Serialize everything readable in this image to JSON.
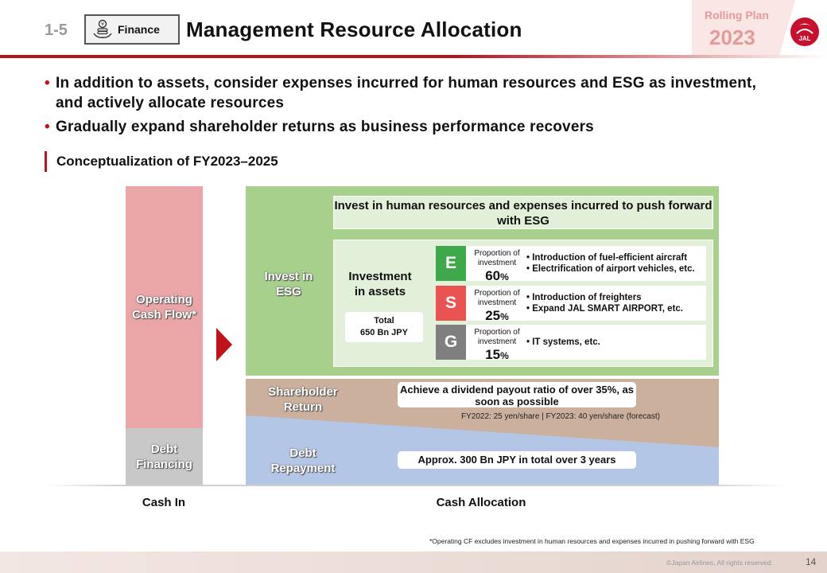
{
  "header": {
    "section_number": "1-5",
    "category_tag": "Finance",
    "title": "Management Resource Allocation",
    "rolling_plan_label": "Rolling Plan",
    "rolling_plan_year": "2023",
    "logo_text": "JAL"
  },
  "bullets": [
    "In addition to assets, consider expenses incurred for human resources and ESG as investment, and actively allocate resources",
    "Gradually expand shareholder returns as business performance recovers"
  ],
  "subheading": "Conceptualization of FY2023–2025",
  "diagram": {
    "cash_in": {
      "operating_cash_flow": "Operating Cash Flow*",
      "debt_financing": "Debt Financing"
    },
    "invest_esg_label": "Invest in ESG",
    "esg_banner": "Invest in human resources and expenses incurred to push forward with ESG",
    "investment_in_assets": "Investment in assets",
    "total_line1": "Total",
    "total_line2": "650 Bn JPY",
    "proportion_label": "Proportion of investment",
    "esg_rows": [
      {
        "letter": "E",
        "color": "#3fa84a",
        "percent": "60",
        "unit": "%",
        "items": [
          "• Introduction of fuel-efficient aircraft",
          "• Electrification of airport vehicles, etc."
        ]
      },
      {
        "letter": "S",
        "color": "#e95352",
        "percent": "25",
        "unit": "%",
        "items": [
          "• Introduction of freighters",
          "• Expand JAL SMART AIRPORT, etc."
        ]
      },
      {
        "letter": "G",
        "color": "#7f7f7f",
        "percent": "15",
        "unit": "%",
        "items": [
          "• IT systems, etc."
        ]
      }
    ],
    "shareholder_return_label": "Shareholder Return",
    "dividend_text": "Achieve a dividend payout ratio of over 35%, as soon as possible",
    "dividend_note": "FY2022: 25 yen/share | FY2023: 40 yen/share (forecast)",
    "debt_repayment_label": "Debt Repayment",
    "debt_text": "Approx. 300 Bn JPY in total over 3 years",
    "axis_cash_in": "Cash In",
    "axis_cash_allocation": "Cash Allocation"
  },
  "footnote": "*Operating CF excludes investment in human resources and expenses incurred in pushing forward with ESG",
  "footer": {
    "copyright": "©Japan Airlines, All rights reserved.",
    "page_number": "14"
  }
}
